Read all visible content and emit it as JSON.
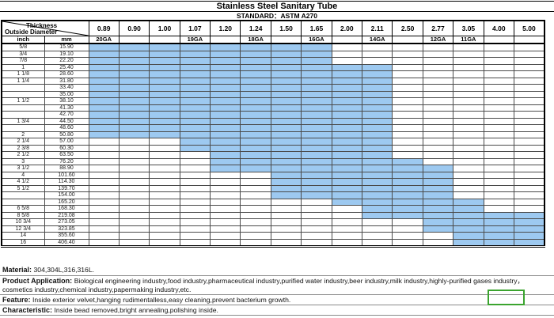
{
  "title": "Stainless Steel Sanitary Tube",
  "standard": "STANDARD：ASTM A270",
  "table": {
    "corner": {
      "thickness_label": "Thickness",
      "outside_diameter_label": "Outside Diameter",
      "inch_label": "inch",
      "mm_label": "mm"
    },
    "thickness_values": [
      "0.89",
      "0.90",
      "1.00",
      "1.07",
      "1.20",
      "1.24",
      "1.50",
      "1.65",
      "2.00",
      "2.11",
      "2.50",
      "2.77",
      "3.05",
      "4.00",
      "5.00"
    ],
    "gauge_values": [
      "20GA",
      "",
      "",
      "19GA",
      "",
      "18GA",
      "",
      "16GA",
      "",
      "14GA",
      "",
      "12GA",
      "11GA",
      "",
      ""
    ],
    "rows": [
      {
        "inch": "5/8",
        "mm": "15.90",
        "blue": [
          0,
          7
        ]
      },
      {
        "inch": "3/4",
        "mm": "19.10",
        "blue": [
          0,
          7
        ]
      },
      {
        "inch": "7/8",
        "mm": "22.20",
        "blue": [
          0,
          7
        ]
      },
      {
        "inch": "1",
        "mm": "25.40",
        "blue": [
          0,
          9
        ]
      },
      {
        "inch": "1 1/8",
        "mm": "28.60",
        "blue": [
          0,
          9
        ]
      },
      {
        "inch": "1 1/4",
        "mm": "31.80",
        "blue": [
          0,
          9
        ]
      },
      {
        "inch": "",
        "mm": "33.40",
        "blue": [
          0,
          9
        ]
      },
      {
        "inch": "",
        "mm": "35.00",
        "blue": [
          0,
          9
        ]
      },
      {
        "inch": "1 1/2",
        "mm": "38.10",
        "blue": [
          0,
          9
        ]
      },
      {
        "inch": "",
        "mm": "41.30",
        "blue": [
          0,
          9
        ]
      },
      {
        "inch": "",
        "mm": "42.70",
        "blue": [
          0,
          9
        ]
      },
      {
        "inch": "1 3/4",
        "mm": "44.50",
        "blue": [
          0,
          9
        ]
      },
      {
        "inch": "",
        "mm": "48.60",
        "blue": [
          0,
          9
        ]
      },
      {
        "inch": "2",
        "mm": "50.80",
        "blue": [
          0,
          9
        ]
      },
      {
        "inch": "2 1/4",
        "mm": "57.00",
        "blue": [
          3,
          9
        ]
      },
      {
        "inch": "2 3/8",
        "mm": "60.30",
        "blue": [
          3,
          9
        ]
      },
      {
        "inch": "2 1/2",
        "mm": "63.50",
        "blue": [
          4,
          9
        ]
      },
      {
        "inch": "3",
        "mm": "76.20",
        "blue": [
          4,
          10
        ]
      },
      {
        "inch": "3 1/2",
        "mm": "88.90",
        "blue": [
          4,
          11
        ]
      },
      {
        "inch": "4",
        "mm": "101.60",
        "blue": [
          6,
          11
        ]
      },
      {
        "inch": "4 1/2",
        "mm": "114.30",
        "blue": [
          6,
          11
        ]
      },
      {
        "inch": "5 1/2",
        "mm": "139.70",
        "blue": [
          6,
          11
        ]
      },
      {
        "inch": "",
        "mm": "154.00",
        "blue": [
          6,
          11
        ]
      },
      {
        "inch": "",
        "mm": "165.20",
        "blue": [
          8,
          12
        ]
      },
      {
        "inch": "6 5/8",
        "mm": "168.30",
        "blue": [
          9,
          12
        ]
      },
      {
        "inch": "8 5/8",
        "mm": "219.08",
        "blue": [
          9,
          14
        ]
      },
      {
        "inch": "10 3/4",
        "mm": "273.05",
        "blue": [
          11,
          14
        ]
      },
      {
        "inch": "12 3/4",
        "mm": "323.85",
        "blue": [
          11,
          14
        ]
      },
      {
        "inch": "14",
        "mm": "355.60",
        "blue": [
          12,
          14
        ]
      },
      {
        "inch": "16",
        "mm": "406.40",
        "blue": [
          12,
          14
        ]
      }
    ]
  },
  "notes": {
    "material": {
      "label": "Material:",
      "text": "304,304L,316,316L."
    },
    "product_application": {
      "label": "Product Application:",
      "text": "Biological engineering industry,food industry,pharmaceutical industry,purified water industry,beer industry,milk industry,highly-purified gases industry，cosmetics industry,chemical industry,papermaking industry,etc."
    },
    "feature": {
      "label": "Feature:",
      "text": "Inside exterior velvet,hanging rudimentalless,easy cleaning,prevent bacterium growth."
    },
    "characteristic": {
      "label": "Characteristic:",
      "text": "Inside bead removed,bright annealing,polishing inside."
    }
  },
  "colors": {
    "highlight_blue": "#9DC9F0",
    "grid_line": "#4a4a4a",
    "green_box_border": "#3BA42F"
  }
}
